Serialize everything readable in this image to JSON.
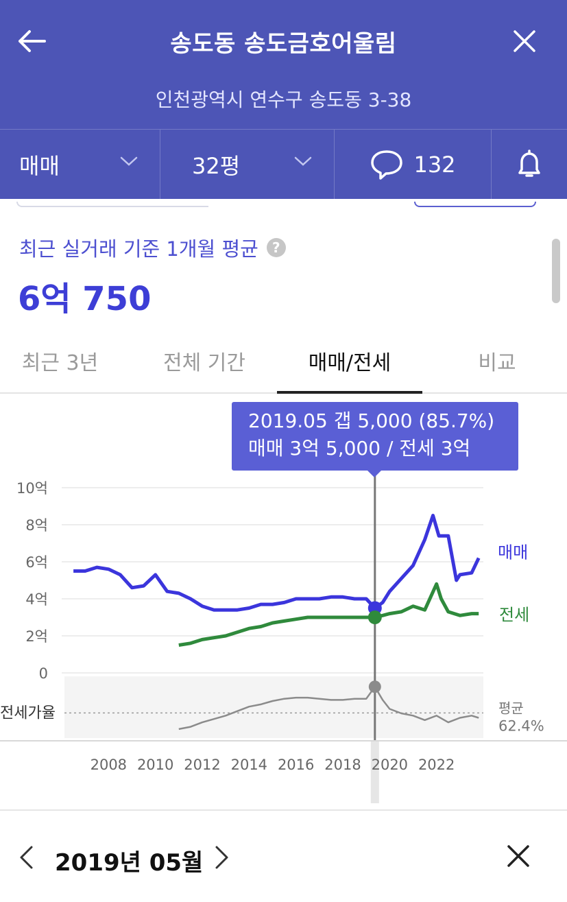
{
  "header": {
    "title": "송도동 송도금호어울림",
    "address": "인천광역시 연수구 송도동 3-38",
    "deal_type": "매매",
    "size": "32평",
    "comment_count": "132"
  },
  "summary": {
    "label": "최근 실거래 기준 1개월 평균",
    "value": "6억 750"
  },
  "tabs": [
    {
      "label": "최근 3년"
    },
    {
      "label": "전체 기간"
    },
    {
      "label": "매매/전세"
    },
    {
      "label": "비교"
    }
  ],
  "tooltip": {
    "line1": "2019.05  갭 5,000 (85.7%)",
    "line2": "매매 3억 5,000 / 전세 3억"
  },
  "chart_data": {
    "type": "line",
    "x_ticks": [
      "2008",
      "2010",
      "2012",
      "2014",
      "2016",
      "2018",
      "2020",
      "2022"
    ],
    "y_ticks": [
      "10억",
      "8억",
      "6억",
      "4억",
      "2억",
      "0"
    ],
    "ylim": [
      0,
      10
    ],
    "y_unit": "억",
    "series": [
      {
        "name": "매매",
        "color": "#3b35dc",
        "x": [
          2006.5,
          2007.0,
          2007.5,
          2008.0,
          2008.5,
          2009.0,
          2009.5,
          2010.0,
          2010.5,
          2011.0,
          2011.5,
          2012.0,
          2012.5,
          2013.0,
          2013.5,
          2014.0,
          2014.5,
          2015.0,
          2015.5,
          2016.0,
          2016.5,
          2017.0,
          2017.5,
          2018.0,
          2018.5,
          2019.0,
          2019.37,
          2019.7,
          2020.0,
          2020.5,
          2021.0,
          2021.5,
          2021.85,
          2022.1,
          2022.5,
          2022.85,
          2023.0,
          2023.5,
          2023.8
        ],
        "y": [
          5.5,
          5.5,
          5.7,
          5.6,
          5.3,
          4.6,
          4.7,
          5.3,
          4.4,
          4.3,
          4.0,
          3.6,
          3.4,
          3.4,
          3.4,
          3.5,
          3.7,
          3.7,
          3.8,
          4.0,
          4.0,
          4.0,
          4.1,
          4.1,
          4.0,
          4.0,
          3.5,
          3.8,
          4.4,
          5.1,
          5.8,
          7.2,
          8.5,
          7.4,
          7.4,
          5.0,
          5.3,
          5.4,
          6.2
        ]
      },
      {
        "name": "전세",
        "color": "#2f8a3c",
        "x": [
          2011.0,
          2011.5,
          2012.0,
          2012.5,
          2013.0,
          2013.5,
          2014.0,
          2014.5,
          2015.0,
          2015.5,
          2016.0,
          2016.5,
          2017.0,
          2017.5,
          2018.0,
          2018.5,
          2019.0,
          2019.37,
          2019.7,
          2020.0,
          2020.5,
          2021.0,
          2021.5,
          2022.0,
          2022.2,
          2022.5,
          2023.0,
          2023.5,
          2023.8
        ],
        "y": [
          1.5,
          1.6,
          1.8,
          1.9,
          2.0,
          2.2,
          2.4,
          2.5,
          2.7,
          2.8,
          2.9,
          3.0,
          3.0,
          3.0,
          3.0,
          3.0,
          3.0,
          3.0,
          3.1,
          3.2,
          3.3,
          3.6,
          3.4,
          4.8,
          4.0,
          3.3,
          3.1,
          3.2,
          3.2
        ]
      }
    ],
    "sub_chart": {
      "label": "전세가율",
      "avg_label": "평균",
      "avg_value": "62.4%",
      "x": [
        2011.0,
        2011.5,
        2012.0,
        2012.5,
        2013.0,
        2013.5,
        2014.0,
        2014.5,
        2015.0,
        2015.5,
        2016.0,
        2016.5,
        2017.0,
        2017.5,
        2018.0,
        2018.5,
        2019.0,
        2019.37,
        2019.7,
        2020.0,
        2020.5,
        2021.0,
        2021.5,
        2022.0,
        2022.5,
        2023.0,
        2023.5,
        2023.8
      ],
      "y": [
        48,
        50,
        54,
        57,
        60,
        64,
        68,
        70,
        73,
        75,
        76,
        76,
        75,
        74,
        74,
        75,
        75,
        85.7,
        74,
        66,
        62,
        60,
        56,
        60,
        54,
        58,
        60,
        58
      ]
    },
    "highlight": {
      "x": 2019.37,
      "label": "2019.05"
    }
  },
  "datebar": {
    "label": "2019년 05월"
  },
  "colors": {
    "header_bg": "#4d55b6",
    "accent": "#3d3ed6",
    "tooltip_bg": "#5a5fd5"
  }
}
